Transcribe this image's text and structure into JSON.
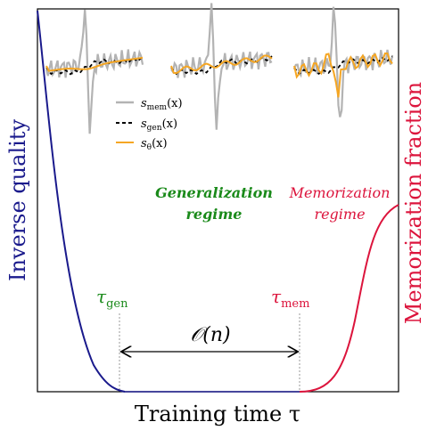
{
  "axes": {
    "xlabel": "Training time τ",
    "ylabel_left": "Inverse quality",
    "ylabel_right": "Memorization fraction"
  },
  "regimes": {
    "generalization": [
      "Generalization",
      "regime"
    ],
    "memorization": [
      "Memorization",
      "regime"
    ]
  },
  "markers": {
    "tau_gen": {
      "symbol": "τ",
      "sub": "gen"
    },
    "tau_mem": {
      "symbol": "τ",
      "sub": "mem"
    },
    "scaling": "𝒪(n)"
  },
  "legend": [
    {
      "sym": "s",
      "sub": "mem",
      "arg": "(x)",
      "style": "gray-solid"
    },
    {
      "sym": "s",
      "sub": "gen",
      "arg": "(x)",
      "style": "black-dashed"
    },
    {
      "sym": "s",
      "sub": "θ",
      "arg": "(x)",
      "style": "orange-solid"
    }
  ],
  "colors": {
    "inverse_quality": "#1a1a8c",
    "memorization": "#dc143c",
    "generalization_text": "#1a8a1a",
    "memorization_text": "#dc143c",
    "s_mem": "#b3b3b3",
    "s_gen": "#000000",
    "s_theta": "#f5a623"
  }
}
